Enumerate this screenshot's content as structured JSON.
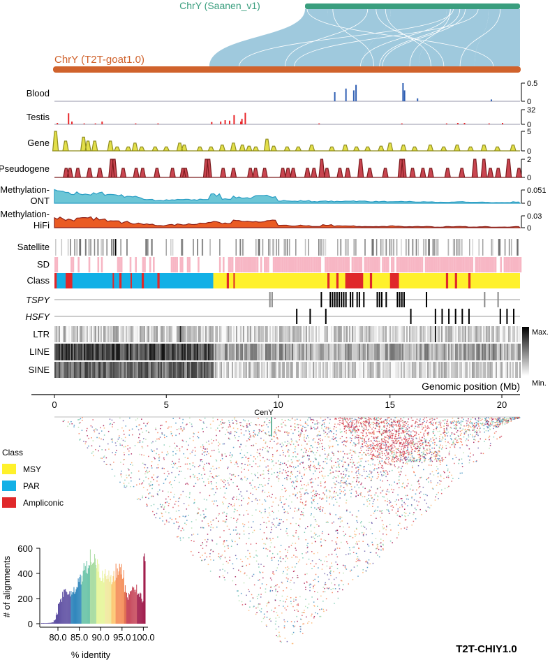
{
  "chart_data": {
    "type": "genome-track",
    "genome_top": "ChrY (Saanen_v1)",
    "genome_bottom": "ChrY (T2T-goat1.0)",
    "xlabel": "Genomic position (Mb)",
    "xlim": [
      0,
      20.8
    ],
    "xticks": [
      "0",
      "5",
      "10",
      "15",
      "20"
    ],
    "cen_label": "CenY",
    "title": "T2T-CHIY1.0",
    "colors": {
      "saanen": "#3a9e7e",
      "t2t": "#d0622c",
      "synteny": "#9fc9dd",
      "blood": "#2f5fb3",
      "testis": "#e8262a",
      "gene": "#e3df4a",
      "gene_line": "#8f8d1f",
      "pseudo": "#c94550",
      "pseudo_line": "#7a1a1c",
      "ont": "#6cc6d6",
      "ont_line": "#2a9ec4",
      "hifi": "#ea5b23",
      "hifi_line": "#8e1f17",
      "msy": "#fff12b",
      "par": "#12b0e6",
      "amp": "#e0282a",
      "sd": "#f7b6c4"
    },
    "tracks": {
      "blood": {
        "label": "Blood",
        "max": "0.5",
        "min": "0",
        "peaks": [
          [
            12.5,
            0.25
          ],
          [
            13.0,
            0.35
          ],
          [
            13.35,
            0.3
          ],
          [
            13.45,
            0.45
          ],
          [
            15.55,
            0.5
          ],
          [
            15.62,
            0.3
          ],
          [
            16.2,
            0.08
          ],
          [
            19.5,
            0.05
          ]
        ]
      },
      "testis": {
        "label": "Testis",
        "max": "32",
        "min": "0",
        "peaks": [
          [
            0.1,
            3
          ],
          [
            0.6,
            24
          ],
          [
            0.75,
            6
          ],
          [
            1.3,
            2
          ],
          [
            1.8,
            2
          ],
          [
            2.1,
            6
          ],
          [
            3.6,
            2
          ],
          [
            4.6,
            2
          ],
          [
            7.0,
            5
          ],
          [
            7.4,
            6
          ],
          [
            7.6,
            9
          ],
          [
            7.8,
            8
          ],
          [
            8.0,
            20
          ],
          [
            8.3,
            6
          ],
          [
            8.35,
            12
          ],
          [
            8.5,
            25
          ],
          [
            11.8,
            2
          ],
          [
            15.5,
            2
          ],
          [
            17.5,
            2
          ],
          [
            18.0,
            3
          ],
          [
            18.3,
            3
          ],
          [
            19.4,
            2
          ],
          [
            20.0,
            3
          ]
        ]
      },
      "gene": {
        "label": "Gene",
        "max": "5",
        "min": "0",
        "peaks": [
          [
            0.05,
            5
          ],
          [
            0.5,
            2.5
          ],
          [
            1.3,
            3.5
          ],
          [
            1.5,
            2.5
          ],
          [
            1.8,
            2.5
          ],
          [
            2.5,
            2.5
          ],
          [
            2.8,
            1
          ],
          [
            3.3,
            1
          ],
          [
            3.6,
            2
          ],
          [
            3.9,
            1
          ],
          [
            4.5,
            1
          ],
          [
            5.0,
            1
          ],
          [
            5.6,
            2
          ],
          [
            5.8,
            1.5
          ],
          [
            6.5,
            1
          ],
          [
            7.0,
            1
          ],
          [
            7.5,
            1.5
          ],
          [
            8.0,
            2
          ],
          [
            8.4,
            1.5
          ],
          [
            8.7,
            1.2
          ],
          [
            9.0,
            1
          ],
          [
            9.5,
            3
          ],
          [
            9.8,
            1.2
          ],
          [
            10.4,
            1
          ],
          [
            10.9,
            1
          ],
          [
            11.5,
            1.5
          ],
          [
            12.4,
            1
          ],
          [
            13.0,
            1.5
          ],
          [
            13.5,
            1
          ],
          [
            14.0,
            1
          ],
          [
            14.6,
            1.2
          ],
          [
            15.0,
            2
          ],
          [
            15.6,
            1.5
          ],
          [
            16.1,
            1
          ],
          [
            16.8,
            1.5
          ],
          [
            17.4,
            1
          ],
          [
            18.0,
            1.5
          ],
          [
            18.6,
            1
          ],
          [
            19.2,
            1.5
          ],
          [
            19.8,
            1
          ],
          [
            20.5,
            1.5
          ]
        ]
      },
      "pseudogene": {
        "label": "Pseudogene",
        "max": "2",
        "min": "0",
        "peaks": [
          [
            0.9,
            1
          ],
          [
            1.2,
            1
          ],
          [
            1.8,
            1
          ],
          [
            2.7,
            1
          ],
          [
            3.5,
            1
          ],
          [
            4.4,
            2
          ],
          [
            4.6,
            2
          ],
          [
            5.3,
            1
          ],
          [
            6.3,
            1
          ],
          [
            6.8,
            1
          ],
          [
            7.9,
            1
          ],
          [
            9.1,
            1
          ],
          [
            9.9,
            1
          ],
          [
            10.1,
            1
          ],
          [
            11.7,
            2
          ],
          [
            11.9,
            2
          ],
          [
            13.0,
            1
          ],
          [
            13.8,
            1
          ],
          [
            15.1,
            1
          ],
          [
            15.5,
            1
          ],
          [
            16.2,
            1
          ],
          [
            17.6,
            1
          ],
          [
            18.0,
            1
          ],
          [
            18.4,
            1
          ],
          [
            19.5,
            1
          ],
          [
            20.0,
            1
          ],
          [
            20.6,
            2
          ],
          [
            21.0,
            1
          ],
          [
            22.0,
            1
          ],
          [
            22.6,
            1
          ],
          [
            23.6,
            2
          ],
          [
            24.3,
            1
          ],
          [
            25.5,
            1
          ],
          [
            26.7,
            2
          ],
          [
            26.9,
            2
          ],
          [
            27.6,
            1
          ],
          [
            28.4,
            1
          ],
          [
            29.0,
            1
          ],
          [
            30.3,
            1
          ],
          [
            31.4,
            1
          ],
          [
            32.4,
            2
          ],
          [
            33.1,
            2
          ],
          [
            33.6,
            1
          ],
          [
            34.2,
            1
          ],
          [
            35.0,
            2
          ],
          [
            35.8,
            1
          ]
        ],
        "_scale": 0.58
      },
      "ont": {
        "label1": "Methylation-",
        "label2": "ONT",
        "max": "0.051",
        "min": "0",
        "values": [
          0.035,
          0.028,
          0.03,
          0.027,
          0.029,
          0.026,
          0.022,
          0.018,
          0.012,
          0.008,
          0.009,
          0.011,
          0.01,
          0.012,
          0.025,
          0.014,
          0.018,
          0.016,
          0.02,
          0.022,
          0.008,
          0.006,
          0.007,
          0.005,
          0.006,
          0.005,
          0.007,
          0.006,
          0.005,
          0.005,
          0.004,
          0.005,
          0.004,
          0.004,
          0.003,
          0.003,
          0.004,
          0.003,
          0.003,
          0.002,
          0.002,
          0.004
        ]
      },
      "hifi": {
        "label1": "Methylation-",
        "label2": "HiFi",
        "max": "0.03",
        "min": "0",
        "values": [
          0.018,
          0.015,
          0.016,
          0.017,
          0.014,
          0.015,
          0.01,
          0.008,
          0.006,
          0.004,
          0.005,
          0.006,
          0.007,
          0.008,
          0.012,
          0.009,
          0.012,
          0.01,
          0.011,
          0.013,
          0.004,
          0.003,
          0.004,
          0.002,
          0.005,
          0.003,
          0.003,
          0.002,
          0.002,
          0.002,
          0.003,
          0.002,
          0.002,
          0.002,
          0.001,
          0.002,
          0.002,
          0.001,
          0.002,
          0.001,
          0.001,
          0.002
        ]
      },
      "satellite": {
        "label": "Satellite"
      },
      "sd": {
        "label": "SD"
      },
      "class": {
        "label": "Class",
        "par_end": 7.1,
        "amp": [
          [
            0,
            0.1
          ],
          [
            0.5,
            0.8
          ],
          [
            2.6,
            2.65
          ],
          [
            2.9,
            3.0
          ],
          [
            3.4,
            3.45
          ],
          [
            3.9,
            4.0
          ],
          [
            4.6,
            4.7
          ],
          [
            7.7,
            7.8
          ],
          [
            8.0,
            8.05
          ],
          [
            12.2,
            12.3
          ],
          [
            12.6,
            12.7
          ],
          [
            13.0,
            13.8
          ],
          [
            14.1,
            14.2
          ],
          [
            15.0,
            15.4
          ],
          [
            17.5,
            17.6
          ],
          [
            17.9,
            18.0
          ],
          [
            18.5,
            18.6
          ]
        ]
      },
      "tspy": {
        "label": "TSPY",
        "pos": [
          9.6,
          9.7,
          11.9,
          12.3,
          12.4,
          12.5,
          12.6,
          12.7,
          12.8,
          12.9,
          13.0,
          13.2,
          13.3,
          13.5,
          13.6,
          13.8,
          14.4,
          14.5,
          14.6,
          14.8,
          15.3,
          15.4,
          15.5,
          15.6,
          16.6,
          19.2,
          19.8
        ],
        "grey": [
          9.6,
          9.7,
          19.2,
          19.8
        ]
      },
      "hsfy": {
        "label": "HSFY",
        "pos": [
          10.8,
          11.4,
          12.1,
          15.9,
          17.0,
          17.3,
          17.6,
          17.9,
          18.2,
          18.5,
          19.9,
          20.2,
          20.5
        ]
      },
      "ltr": {
        "label": "LTR"
      },
      "line": {
        "label": "LINE"
      },
      "sine": {
        "label": "SINE"
      }
    },
    "colorbar": {
      "max": "Max.",
      "min": "Min."
    },
    "legend": {
      "title": "Class",
      "items": [
        {
          "label": "MSY",
          "color": "#fff12b"
        },
        {
          "label": "PAR",
          "color": "#12b0e6"
        },
        {
          "label": "Ampliconic",
          "color": "#e0282a"
        }
      ]
    },
    "histogram": {
      "type": "bar",
      "xlabel": "% identity",
      "ylabel": "# of alignments",
      "xticks": [
        "80.0",
        "85.0",
        "90.0",
        "95.0",
        "100.0"
      ],
      "yticks": [
        "0",
        "200",
        "400",
        "600"
      ],
      "ylim": [
        0,
        600
      ],
      "x_start": 76,
      "bin": 0.5,
      "values": [
        5,
        5,
        5,
        6,
        8,
        10,
        30,
        80,
        150,
        200,
        240,
        250,
        260,
        240,
        250,
        260,
        280,
        320,
        340,
        380,
        420,
        450,
        500,
        520,
        480,
        490,
        470,
        420,
        380,
        380,
        400,
        390,
        380,
        350,
        370,
        420,
        450,
        420,
        380,
        280,
        220,
        230,
        290,
        300,
        280,
        240,
        220,
        180,
        500
      ]
    }
  }
}
